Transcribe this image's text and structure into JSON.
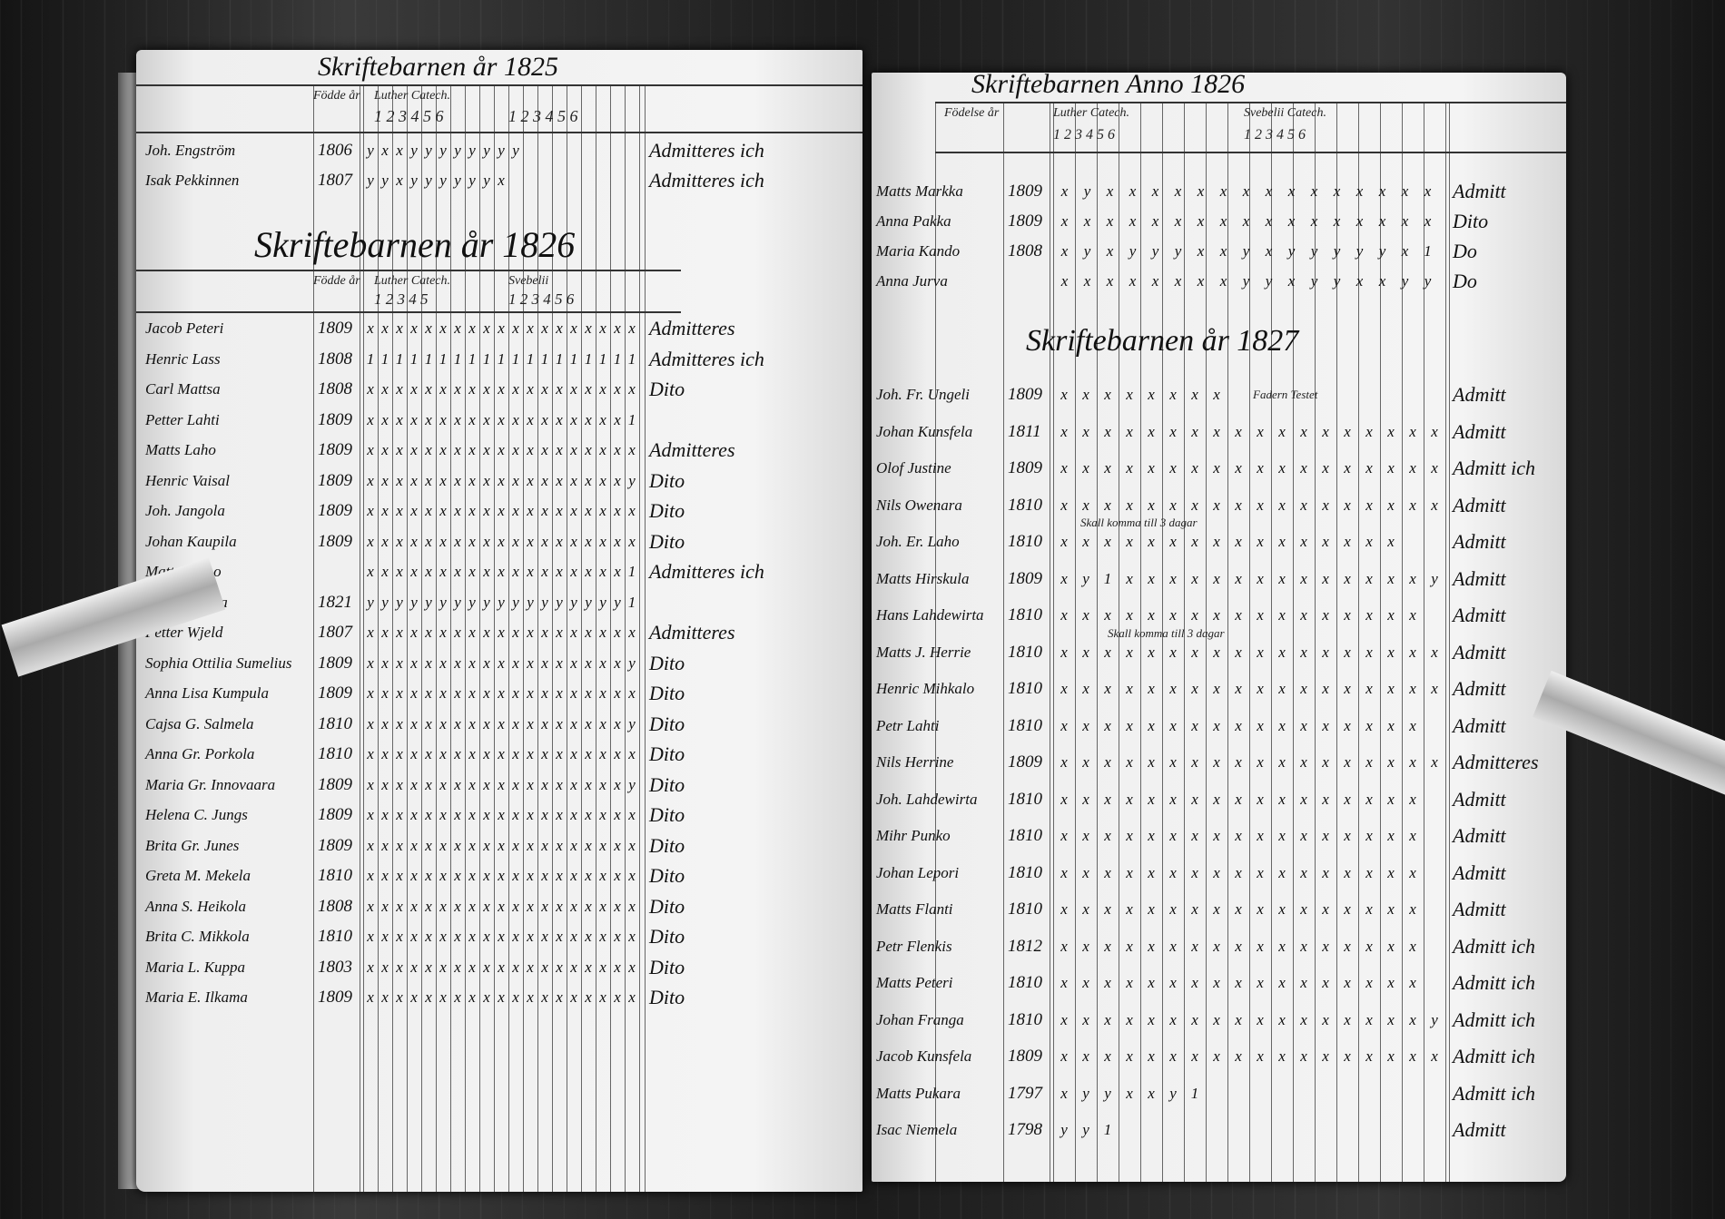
{
  "left_page": {
    "title_1825": "Skriftebarnen år 1825",
    "headers_1825": [
      "Födde år",
      "Luther Catech.",
      "1 2 3 4 5 6",
      "1 2 3 4 5 6"
    ],
    "rows_1825": [
      {
        "name": "Joh. Engström",
        "year": "1806",
        "marks": "yxxyyyyyyyy",
        "remark": "Admitteres ich"
      },
      {
        "name": "Isak Pekkinnen",
        "year": "1807",
        "marks": "yyxyyyyyyx",
        "remark": "Admitteres ich"
      }
    ],
    "title_1826": "Skriftebarnen år 1826",
    "headers_1826": [
      "Födde år",
      "Luther Catech.",
      "1 2 3 4 5",
      "Svebelii",
      "1 2 3 4 5 6"
    ],
    "rows_1826": [
      {
        "name": "Jacob Peteri",
        "year": "1809",
        "marks": "xxxxxxxxxxxxxxxxxxx",
        "remark": "Admitteres"
      },
      {
        "name": "Henric Lass",
        "year": "1808",
        "marks": "1111111111111111111",
        "remark": "Admitteres ich"
      },
      {
        "name": "Carl Mattsa",
        "year": "1808",
        "marks": "xxxxxxxxxxxxxxxxxxx",
        "remark": "Dito"
      },
      {
        "name": "Petter Lahti",
        "year": "1809",
        "marks": "xxxxxxxxxxxxxxxxxx1",
        "remark": ""
      },
      {
        "name": "Matts Laho",
        "year": "1809",
        "marks": "xxxxxxxxxxxxxxxxxxx",
        "remark": "Admitteres"
      },
      {
        "name": "Henric Vaisal",
        "year": "1809",
        "marks": "xxxxxxxxxxxxxxxxxxy",
        "remark": "Dito"
      },
      {
        "name": "Joh. Jangola",
        "year": "1809",
        "marks": "xxxxxxxxxxxxxxxxxxx",
        "remark": "Dito"
      },
      {
        "name": "Johan Kaupila",
        "year": "1809",
        "marks": "xxxxxxxxxxxxxxxxxxx",
        "remark": "Dito"
      },
      {
        "name": "Matts Pippo",
        "year": "",
        "marks": "xxxxxxxxxxxxxxxxxx1",
        "remark": "Admitteres ich"
      },
      {
        "name": "Jacob Aattila",
        "year": "1821",
        "marks": "yyyyyyyyyyyyyyyyyy1",
        "remark": ""
      },
      {
        "name": "Petter Wjeld",
        "year": "1807",
        "marks": "xxxxxxxxxxxxxxxxxxx",
        "remark": "Admitteres"
      },
      {
        "name": "Sophia Ottilia Sumelius",
        "year": "1809",
        "marks": "xxxxxxxxxxxxxxxxxxy",
        "remark": "Dito"
      },
      {
        "name": "Anna Lisa Kumpula",
        "year": "1809",
        "marks": "xxxxxxxxxxxxxxxxxxx",
        "remark": "Dito"
      },
      {
        "name": "Cajsa G. Salmela",
        "year": "1810",
        "marks": "xxxxxxxxxxxxxxxxxxy",
        "remark": "Dito"
      },
      {
        "name": "Anna Gr. Porkola",
        "year": "1810",
        "marks": "xxxxxxxxxxxxxxxxxxx",
        "remark": "Dito"
      },
      {
        "name": "Maria Gr. Innovaara",
        "year": "1809",
        "marks": "xxxxxxxxxxxxxxxxxxy",
        "remark": "Dito"
      },
      {
        "name": "Helena C. Jungs",
        "year": "1809",
        "marks": "xxxxxxxxxxxxxxxxxxx",
        "remark": "Dito"
      },
      {
        "name": "Brita Gr. Junes",
        "year": "1809",
        "marks": "xxxxxxxxxxxxxxxxxxx",
        "remark": "Dito"
      },
      {
        "name": "Greta M. Mekela",
        "year": "1810",
        "marks": "xxxxxxxxxxxxxxxxxxx",
        "remark": "Dito"
      },
      {
        "name": "Anna S. Heikola",
        "year": "1808",
        "marks": "xxxxxxxxxxxxxxxxxxx",
        "remark": "Dito"
      },
      {
        "name": "Brita C. Mikkola",
        "year": "1810",
        "marks": "xxxxxxxxxxxxxxxxxxx",
        "remark": "Dito"
      },
      {
        "name": "Maria L. Kuppa",
        "year": "1803",
        "marks": "xxxxxxxxxxxxxxxxxxx",
        "remark": "Dito"
      },
      {
        "name": "Maria E. Ilkama",
        "year": "1809",
        "marks": "xxxxxxxxxxxxxxxxxxx",
        "remark": "Dito"
      }
    ]
  },
  "right_page": {
    "title_1826": "Skriftebarnen Anno 1826",
    "headers_1826": [
      "Födelse år",
      "Luther Catech.",
      "1 2 3 4 5 6",
      "Svebelii Catech.",
      "1 2 3 4 5 6"
    ],
    "rows_1826": [
      {
        "name": "Matts Markka",
        "year": "1809",
        "marks": "xyxxxxxxxxxxxxxxx",
        "remark": "Admitt"
      },
      {
        "name": "Anna Pakka",
        "year": "1809",
        "marks": "xxxxxxxxxxxxxxxxx",
        "remark": "Dito"
      },
      {
        "name": "Maria Kando",
        "year": "1808",
        "marks": "xyxyyyxxyxyyyyyx1",
        "remark": "Do"
      },
      {
        "name": "Anna Jurva",
        "year": "",
        "marks": "xxxxxxxxyyxyyxxyy",
        "remark": "Do"
      }
    ],
    "title_1827": "Skriftebarnen år 1827",
    "notes": [
      "Fadern Testet",
      "Skall komma till 3 dagar",
      "Skall komma till 3 dagar"
    ],
    "rows_1827": [
      {
        "name": "Joh. Fr. Ungeli",
        "year": "1809",
        "marks": "xxxxxxxx",
        "remark": "Admitt"
      },
      {
        "name": "Johan Kunsfela",
        "year": "1811",
        "marks": "xxxxxxxxxxxxxxxxxx",
        "remark": "Admitt"
      },
      {
        "name": "Olof Justine",
        "year": "1809",
        "marks": "xxxxxxxxxxxxxxxxxx",
        "remark": "Admitt ich"
      },
      {
        "name": "Nils Owenara",
        "year": "1810",
        "marks": "xxxxxxxxxxxxxxxxxx",
        "remark": "Admitt"
      },
      {
        "name": "Joh. Er. Laho",
        "year": "1810",
        "marks": "xxxxxxxxxxxxxxxx",
        "remark": "Admitt"
      },
      {
        "name": "Matts Hirskula",
        "year": "1809",
        "marks": "xy1xxxxxxxxxxxxxxy",
        "remark": "Admitt"
      },
      {
        "name": "Hans Lahdewirta",
        "year": "1810",
        "marks": "xxxxxxxxxxxxxxxxx",
        "remark": "Admitt"
      },
      {
        "name": "Matts J. Herrie",
        "year": "1810",
        "marks": "xxxxxxxxxxxxxxxxxx",
        "remark": "Admitt"
      },
      {
        "name": "Henric Mihkalo",
        "year": "1810",
        "marks": "xxxxxxxxxxxxxxxxxx",
        "remark": "Admitt"
      },
      {
        "name": "Petr Lahti",
        "year": "1810",
        "marks": "xxxxxxxxxxxxxxxxx",
        "remark": "Admitt"
      },
      {
        "name": "Nils Herrine",
        "year": "1809",
        "marks": "xxxxxxxxxxxxxxxxxx",
        "remark": "Admitteres"
      },
      {
        "name": "Joh. Lahdewirta",
        "year": "1810",
        "marks": "xxxxxxxxxxxxxxxxx",
        "remark": "Admitt"
      },
      {
        "name": "Mihr Punko",
        "year": "1810",
        "marks": "xxxxxxxxxxxxxxxxx",
        "remark": "Admitt"
      },
      {
        "name": "Johan Lepori",
        "year": "1810",
        "marks": "xxxxxxxxxxxxxxxxx",
        "remark": "Admitt"
      },
      {
        "name": "Matts Flanti",
        "year": "1810",
        "marks": "xxxxxxxxxxxxxxxxx",
        "remark": "Admitt"
      },
      {
        "name": "Petr Flenkis",
        "year": "1812",
        "marks": "xxxxxxxxxxxxxxxxx",
        "remark": "Admitt ich"
      },
      {
        "name": "Matts Peteri",
        "year": "1810",
        "marks": "xxxxxxxxxxxxxxxxx",
        "remark": "Admitt ich"
      },
      {
        "name": "Johan Franga",
        "year": "1810",
        "marks": "xxxxxxxxxxxxxxxxxy",
        "remark": "Admitt ich"
      },
      {
        "name": "Jacob Kunsfela",
        "year": "1809",
        "marks": "xxxxxxxxxxxxxxxxxx",
        "remark": "Admitt ich"
      },
      {
        "name": "Matts Pukara",
        "year": "1797",
        "marks": "xyyxxy1",
        "remark": "Admitt ich"
      },
      {
        "name": "Isac Niemela",
        "year": "1798",
        "marks": "yy1",
        "remark": "Admitt"
      }
    ]
  }
}
